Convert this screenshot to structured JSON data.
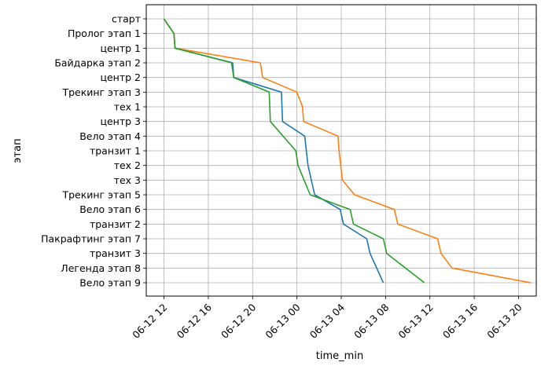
{
  "chart_data": {
    "type": "line",
    "xlabel": "time_min",
    "ylabel": "этап",
    "grid": true,
    "categories": [
      "старт",
      "Пролог этап 1",
      "центр 1",
      "Байдарка этап 2",
      "центр 2",
      "Трекинг этап 3",
      "тех 1",
      "центр 3",
      "Вело этап 4",
      "транзит 1",
      "тех 2",
      "тех 3",
      "Трекинг этап 5",
      "Вело этап 6",
      "транзит 2",
      "Пакрафтинг этап 7",
      "транзит 3",
      "Легенда этап 8",
      "Вело этап 9"
    ],
    "x_ticks": [
      "06-12 12",
      "06-12 16",
      "06-12 20",
      "06-13 00",
      "06-13 04",
      "06-13 08",
      "06-13 12",
      "06-13 16",
      "06-13 20"
    ],
    "x_tick_hours": [
      12,
      16,
      20,
      24,
      28,
      32,
      36,
      40,
      44
    ],
    "xlim_hours": [
      10.4,
      45.6
    ],
    "series": [
      {
        "color": "#1f77b4",
        "hours": [
          12.0,
          12.9,
          13.0,
          18.2,
          18.3,
          22.6,
          null,
          22.7,
          24.7,
          null,
          25.0,
          null,
          25.6,
          27.9,
          28.2,
          30.3,
          30.6,
          null,
          31.8
        ]
      },
      {
        "color": "#ff7f0e",
        "hours": [
          12.0,
          12.9,
          13.0,
          20.7,
          20.9,
          24.0,
          24.5,
          24.6,
          27.7,
          27.8,
          null,
          28.1,
          29.2,
          32.8,
          33.1,
          36.7,
          37.0,
          38.0,
          45.1
        ]
      },
      {
        "color": "#2ca02c",
        "hours": [
          12.0,
          12.9,
          13.0,
          18.1,
          18.3,
          21.5,
          null,
          21.6,
          null,
          23.9,
          24.1,
          null,
          25.2,
          28.8,
          29.1,
          31.8,
          32.1,
          null,
          35.5
        ]
      }
    ]
  }
}
